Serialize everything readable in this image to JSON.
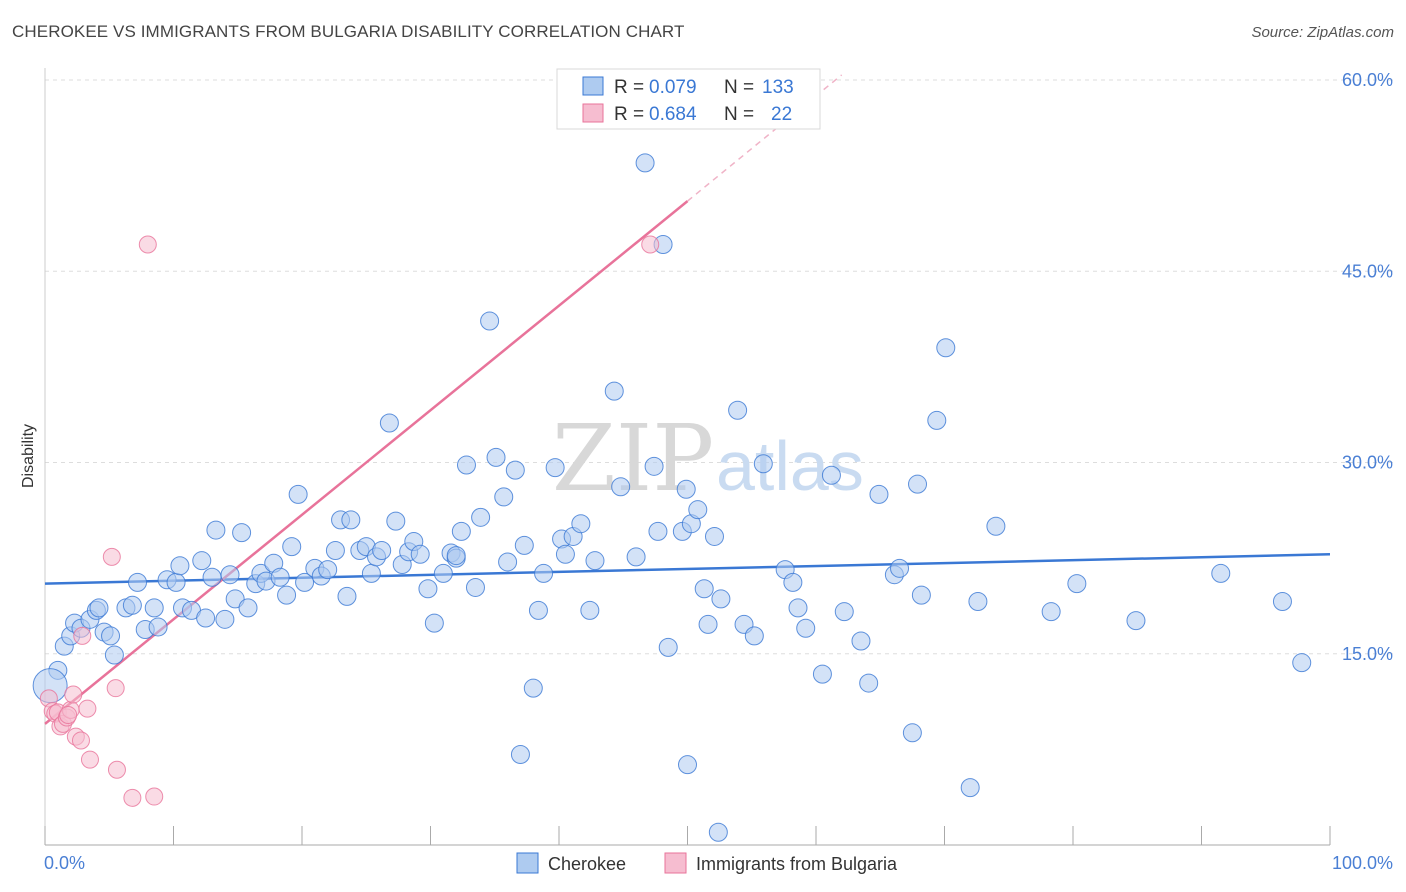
{
  "title": "CHEROKEE VS IMMIGRANTS FROM BULGARIA DISABILITY CORRELATION CHART",
  "source": "Source: ZipAtlas.com",
  "watermark": {
    "left": "ZIP",
    "right": "atlas"
  },
  "colors": {
    "blue": "#3a78d4",
    "blue_fill": "#aecbf0",
    "pink": "#e8739a",
    "pink_fill": "#f6bdd0",
    "grid": "#dddddd"
  },
  "legend": {
    "rows": [
      {
        "r_label": "R =",
        "r": "0.079",
        "n_label": "N =",
        "n": "133"
      },
      {
        "r_label": "R =",
        "r": "0.684",
        "n_label": "N =",
        "n": "22"
      }
    ]
  },
  "bottom_legend": [
    "Cherokee",
    "Immigrants from Bulgaria"
  ],
  "chart_data": {
    "type": "scatter",
    "title": "CHEROKEE VS IMMIGRANTS FROM BULGARIA DISABILITY CORRELATION CHART",
    "xlabel": "",
    "ylabel": "Disability",
    "xlim": [
      0,
      100
    ],
    "ylim": [
      0,
      60
    ],
    "x_tick_labels": [
      "0.0%",
      "100.0%"
    ],
    "y_tick_labels": [
      "15.0%",
      "30.0%",
      "45.0%",
      "60.0%"
    ],
    "y_ticks": [
      15,
      30,
      45,
      60
    ],
    "grid": true,
    "legend_position": "top-center",
    "series": [
      {
        "name": "Cherokee",
        "r": 0.079,
        "n": 133,
        "trend": {
          "x": [
            0,
            100
          ],
          "y": [
            20.5,
            22.8
          ]
        },
        "points": [
          [
            1.0,
            13.7
          ],
          [
            1.5,
            15.6
          ],
          [
            2.0,
            16.4
          ],
          [
            2.3,
            17.4
          ],
          [
            2.8,
            17.0
          ],
          [
            3.5,
            17.7
          ],
          [
            4.0,
            18.4
          ],
          [
            4.2,
            18.6
          ],
          [
            4.6,
            16.7
          ],
          [
            5.1,
            16.4
          ],
          [
            5.4,
            14.9
          ],
          [
            6.3,
            18.6
          ],
          [
            6.8,
            18.8
          ],
          [
            7.2,
            20.6
          ],
          [
            7.8,
            16.9
          ],
          [
            8.5,
            18.6
          ],
          [
            8.8,
            17.1
          ],
          [
            9.5,
            20.8
          ],
          [
            10.2,
            20.6
          ],
          [
            10.5,
            21.9
          ],
          [
            10.7,
            18.6
          ],
          [
            11.4,
            18.4
          ],
          [
            12.2,
            22.3
          ],
          [
            12.5,
            17.8
          ],
          [
            13.0,
            21.0
          ],
          [
            13.3,
            24.7
          ],
          [
            14.0,
            17.7
          ],
          [
            14.4,
            21.2
          ],
          [
            14.8,
            19.3
          ],
          [
            15.3,
            24.5
          ],
          [
            15.8,
            18.6
          ],
          [
            16.4,
            20.5
          ],
          [
            16.8,
            21.3
          ],
          [
            17.2,
            20.7
          ],
          [
            17.8,
            22.1
          ],
          [
            18.3,
            21.0
          ],
          [
            18.8,
            19.6
          ],
          [
            19.2,
            23.4
          ],
          [
            19.7,
            27.5
          ],
          [
            20.2,
            20.6
          ],
          [
            21.0,
            21.7
          ],
          [
            21.5,
            21.1
          ],
          [
            22.0,
            21.6
          ],
          [
            22.6,
            23.1
          ],
          [
            23.0,
            25.5
          ],
          [
            23.5,
            19.5
          ],
          [
            23.8,
            25.5
          ],
          [
            24.5,
            23.1
          ],
          [
            25.0,
            23.4
          ],
          [
            25.4,
            21.3
          ],
          [
            25.8,
            22.6
          ],
          [
            26.2,
            23.1
          ],
          [
            26.8,
            33.1
          ],
          [
            27.3,
            25.4
          ],
          [
            27.8,
            22.0
          ],
          [
            28.3,
            23.0
          ],
          [
            28.7,
            23.8
          ],
          [
            29.2,
            22.8
          ],
          [
            29.8,
            20.1
          ],
          [
            30.3,
            17.4
          ],
          [
            31.0,
            21.3
          ],
          [
            31.6,
            22.9
          ],
          [
            32.0,
            22.5
          ],
          [
            32.4,
            24.6
          ],
          [
            32.8,
            29.8
          ],
          [
            33.5,
            20.2
          ],
          [
            33.9,
            25.7
          ],
          [
            34.6,
            41.1
          ],
          [
            35.1,
            30.4
          ],
          [
            35.7,
            27.3
          ],
          [
            36.0,
            22.2
          ],
          [
            36.6,
            29.4
          ],
          [
            37.3,
            23.5
          ],
          [
            38.0,
            12.3
          ],
          [
            38.4,
            18.4
          ],
          [
            38.8,
            21.3
          ],
          [
            39.7,
            29.6
          ],
          [
            40.2,
            24.0
          ],
          [
            41.1,
            24.2
          ],
          [
            41.7,
            25.2
          ],
          [
            42.4,
            18.4
          ],
          [
            42.8,
            22.3
          ],
          [
            44.3,
            35.6
          ],
          [
            44.8,
            28.1
          ],
          [
            46.0,
            22.6
          ],
          [
            46.7,
            53.5
          ],
          [
            47.4,
            29.7
          ],
          [
            47.7,
            24.6
          ],
          [
            48.1,
            47.1
          ],
          [
            49.6,
            24.6
          ],
          [
            49.9,
            27.9
          ],
          [
            50.3,
            25.2
          ],
          [
            50.8,
            26.3
          ],
          [
            51.3,
            20.1
          ],
          [
            51.6,
            17.3
          ],
          [
            52.1,
            24.2
          ],
          [
            52.6,
            19.3
          ],
          [
            53.9,
            34.1
          ],
          [
            54.4,
            17.3
          ],
          [
            55.2,
            16.4
          ],
          [
            55.9,
            29.9
          ],
          [
            57.6,
            21.6
          ],
          [
            58.2,
            20.6
          ],
          [
            58.6,
            18.6
          ],
          [
            59.2,
            17.0
          ],
          [
            60.5,
            13.4
          ],
          [
            61.2,
            29.0
          ],
          [
            62.2,
            18.3
          ],
          [
            63.5,
            16.0
          ],
          [
            64.1,
            12.7
          ],
          [
            64.9,
            27.5
          ],
          [
            66.1,
            21.2
          ],
          [
            66.5,
            21.7
          ],
          [
            67.5,
            8.8
          ],
          [
            67.9,
            28.3
          ],
          [
            68.2,
            19.6
          ],
          [
            69.4,
            33.3
          ],
          [
            70.1,
            39.0
          ],
          [
            72.0,
            4.5
          ],
          [
            72.6,
            19.1
          ],
          [
            74.0,
            25.0
          ],
          [
            78.3,
            18.3
          ],
          [
            80.3,
            20.5
          ],
          [
            84.9,
            17.6
          ],
          [
            91.5,
            21.3
          ],
          [
            96.3,
            19.1
          ],
          [
            97.8,
            14.3
          ],
          [
            32.0,
            22.7
          ],
          [
            37.0,
            7.1
          ],
          [
            48.5,
            15.5
          ],
          [
            50.0,
            6.3
          ],
          [
            52.4,
            1.0
          ],
          [
            40.5,
            22.8
          ]
        ],
        "large_points": [
          [
            0.4,
            12.5
          ]
        ]
      },
      {
        "name": "Immigrants from Bulgaria",
        "r": 0.684,
        "n": 22,
        "trend": {
          "x": [
            0,
            50
          ],
          "y": [
            9.5,
            50.5
          ]
        },
        "trend_dashed": {
          "x": [
            50,
            62
          ],
          "y": [
            50.5,
            60.4
          ]
        },
        "points": [
          [
            0.3,
            11.5
          ],
          [
            0.6,
            10.5
          ],
          [
            0.8,
            10.3
          ],
          [
            1.0,
            10.4
          ],
          [
            1.2,
            9.3
          ],
          [
            1.4,
            9.5
          ],
          [
            1.7,
            10.0
          ],
          [
            2.0,
            10.6
          ],
          [
            2.2,
            11.8
          ],
          [
            2.4,
            8.5
          ],
          [
            2.8,
            8.2
          ],
          [
            2.9,
            16.4
          ],
          [
            3.3,
            10.7
          ],
          [
            3.5,
            6.7
          ],
          [
            5.2,
            22.6
          ],
          [
            5.5,
            12.3
          ],
          [
            5.6,
            5.9
          ],
          [
            6.8,
            3.7
          ],
          [
            8.5,
            3.8
          ],
          [
            8.0,
            47.1
          ],
          [
            47.1,
            47.1
          ],
          [
            1.8,
            10.2
          ]
        ]
      }
    ]
  }
}
